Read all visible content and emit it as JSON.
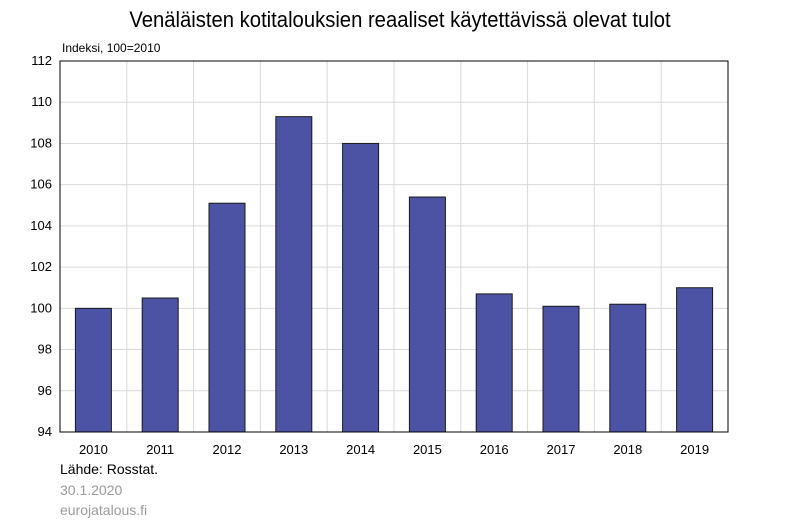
{
  "chart_data": {
    "type": "bar",
    "title": "Venäläisten kotitalouksien reaaliset käytettävissä olevat tulot",
    "unit_label": "Indeksi, 100=2010",
    "categories": [
      "2010",
      "2011",
      "2012",
      "2013",
      "2014",
      "2015",
      "2016",
      "2017",
      "2018",
      "2019"
    ],
    "values": [
      100.0,
      100.5,
      105.1,
      109.3,
      108.0,
      105.4,
      100.7,
      100.1,
      100.2,
      101.0
    ],
    "ylim": [
      94,
      112
    ],
    "yticks": [
      94,
      96,
      98,
      100,
      102,
      104,
      106,
      108,
      110,
      112
    ],
    "grid": true,
    "legend": "none",
    "bar_color": "#4c53a5"
  },
  "footer": {
    "source": "Lähde: Rosstat.",
    "date": "30.1.2020",
    "site": "eurojatalous.fi"
  }
}
